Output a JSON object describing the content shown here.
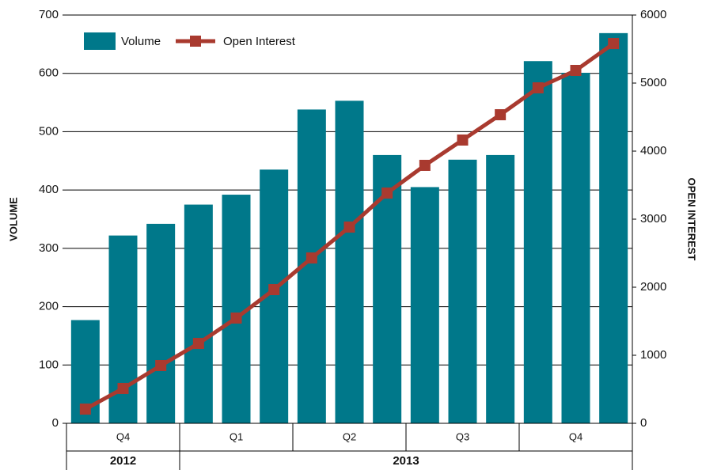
{
  "chart_data": {
    "type": "bar",
    "y_label": "VOLUME",
    "y2_label": "OPEN INTEREST",
    "categories": [
      null,
      null,
      null,
      null,
      null,
      null,
      null,
      null,
      null,
      null,
      null,
      null,
      null,
      null,
      null
    ],
    "quarters": {
      "labels": [
        "Q4",
        "Q1",
        "Q2",
        "Q3",
        "Q4"
      ],
      "sizes": [
        3,
        3,
        3,
        3,
        3
      ]
    },
    "years": {
      "labels": [
        "2012",
        "2013"
      ],
      "sizes": [
        3,
        12
      ]
    },
    "series": [
      {
        "name": "Volume",
        "type": "bar",
        "color": "#00788a",
        "values": [
          177,
          322,
          342,
          375,
          392,
          435,
          538,
          553,
          460,
          405,
          452,
          460,
          621,
          601,
          669
        ]
      },
      {
        "name": "Open Interest",
        "type": "line",
        "axis": "y2",
        "color": "#a93a2f",
        "values": [
          209,
          512,
          849,
          1174,
          1547,
          1965,
          2430,
          2884,
          3384,
          3791,
          4163,
          4535,
          4930,
          5186,
          5581
        ]
      }
    ],
    "ylim": [
      0,
      700
    ],
    "yticks": [
      0,
      100,
      200,
      300,
      400,
      500,
      600,
      700
    ],
    "y2lim": [
      0,
      6000
    ],
    "y2ticks": [
      0,
      1000,
      2000,
      3000,
      4000,
      5000,
      6000
    ],
    "grid": true,
    "legend": "upper left"
  }
}
